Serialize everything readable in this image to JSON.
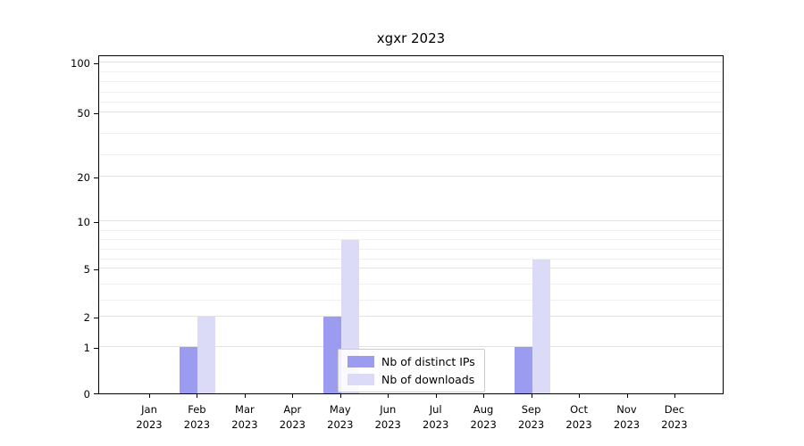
{
  "title": "xgxr 2023",
  "chart_data": {
    "type": "bar",
    "title": "xgxr 2023",
    "categories": [
      "Jan 2023",
      "Feb 2023",
      "Mar 2023",
      "Apr 2023",
      "May 2023",
      "Jun 2023",
      "Jul 2023",
      "Aug 2023",
      "Sep 2023",
      "Oct 2023",
      "Nov 2023",
      "Dec 2023"
    ],
    "series": [
      {
        "name": "Nb of distinct IPs",
        "color": "#9b9bef",
        "values": [
          0,
          1,
          0,
          0,
          2,
          0,
          0,
          0,
          1,
          0,
          0,
          0
        ]
      },
      {
        "name": "Nb of downloads",
        "color": "#dbdbf8",
        "values": [
          0,
          2,
          0,
          0,
          8,
          0,
          0,
          0,
          6,
          0,
          0,
          0
        ]
      }
    ],
    "xlabel": "",
    "ylabel": "",
    "yticks": [
      0,
      1,
      2,
      5,
      10,
      20,
      50,
      100
    ],
    "minor_gridlines": [
      3,
      4,
      6,
      7,
      8,
      9,
      30,
      40,
      60,
      70,
      80,
      90
    ],
    "yscale": "symlog",
    "ylim": [
      0,
      110
    ],
    "grid": "horizontal",
    "legend_position": "lower center"
  }
}
